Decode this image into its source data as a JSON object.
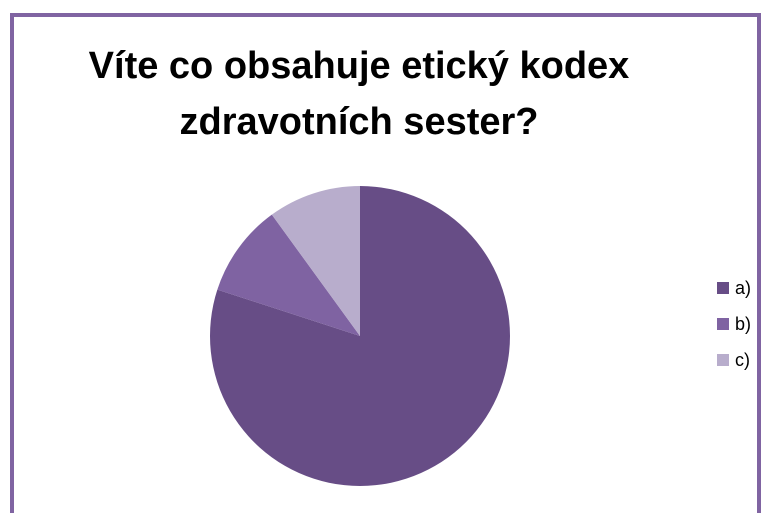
{
  "colors": {
    "border": "#8064a2",
    "slice_a": "#674d86",
    "slice_b": "#7f63a2",
    "slice_c": "#b8adcc"
  },
  "chart_data": {
    "type": "pie",
    "title": "Víte co obsahuje etický kodex\nzdravotních sester?",
    "categories": [
      "a)",
      "b)",
      "c)"
    ],
    "values": [
      80,
      10,
      10
    ],
    "legend_position": "right"
  }
}
